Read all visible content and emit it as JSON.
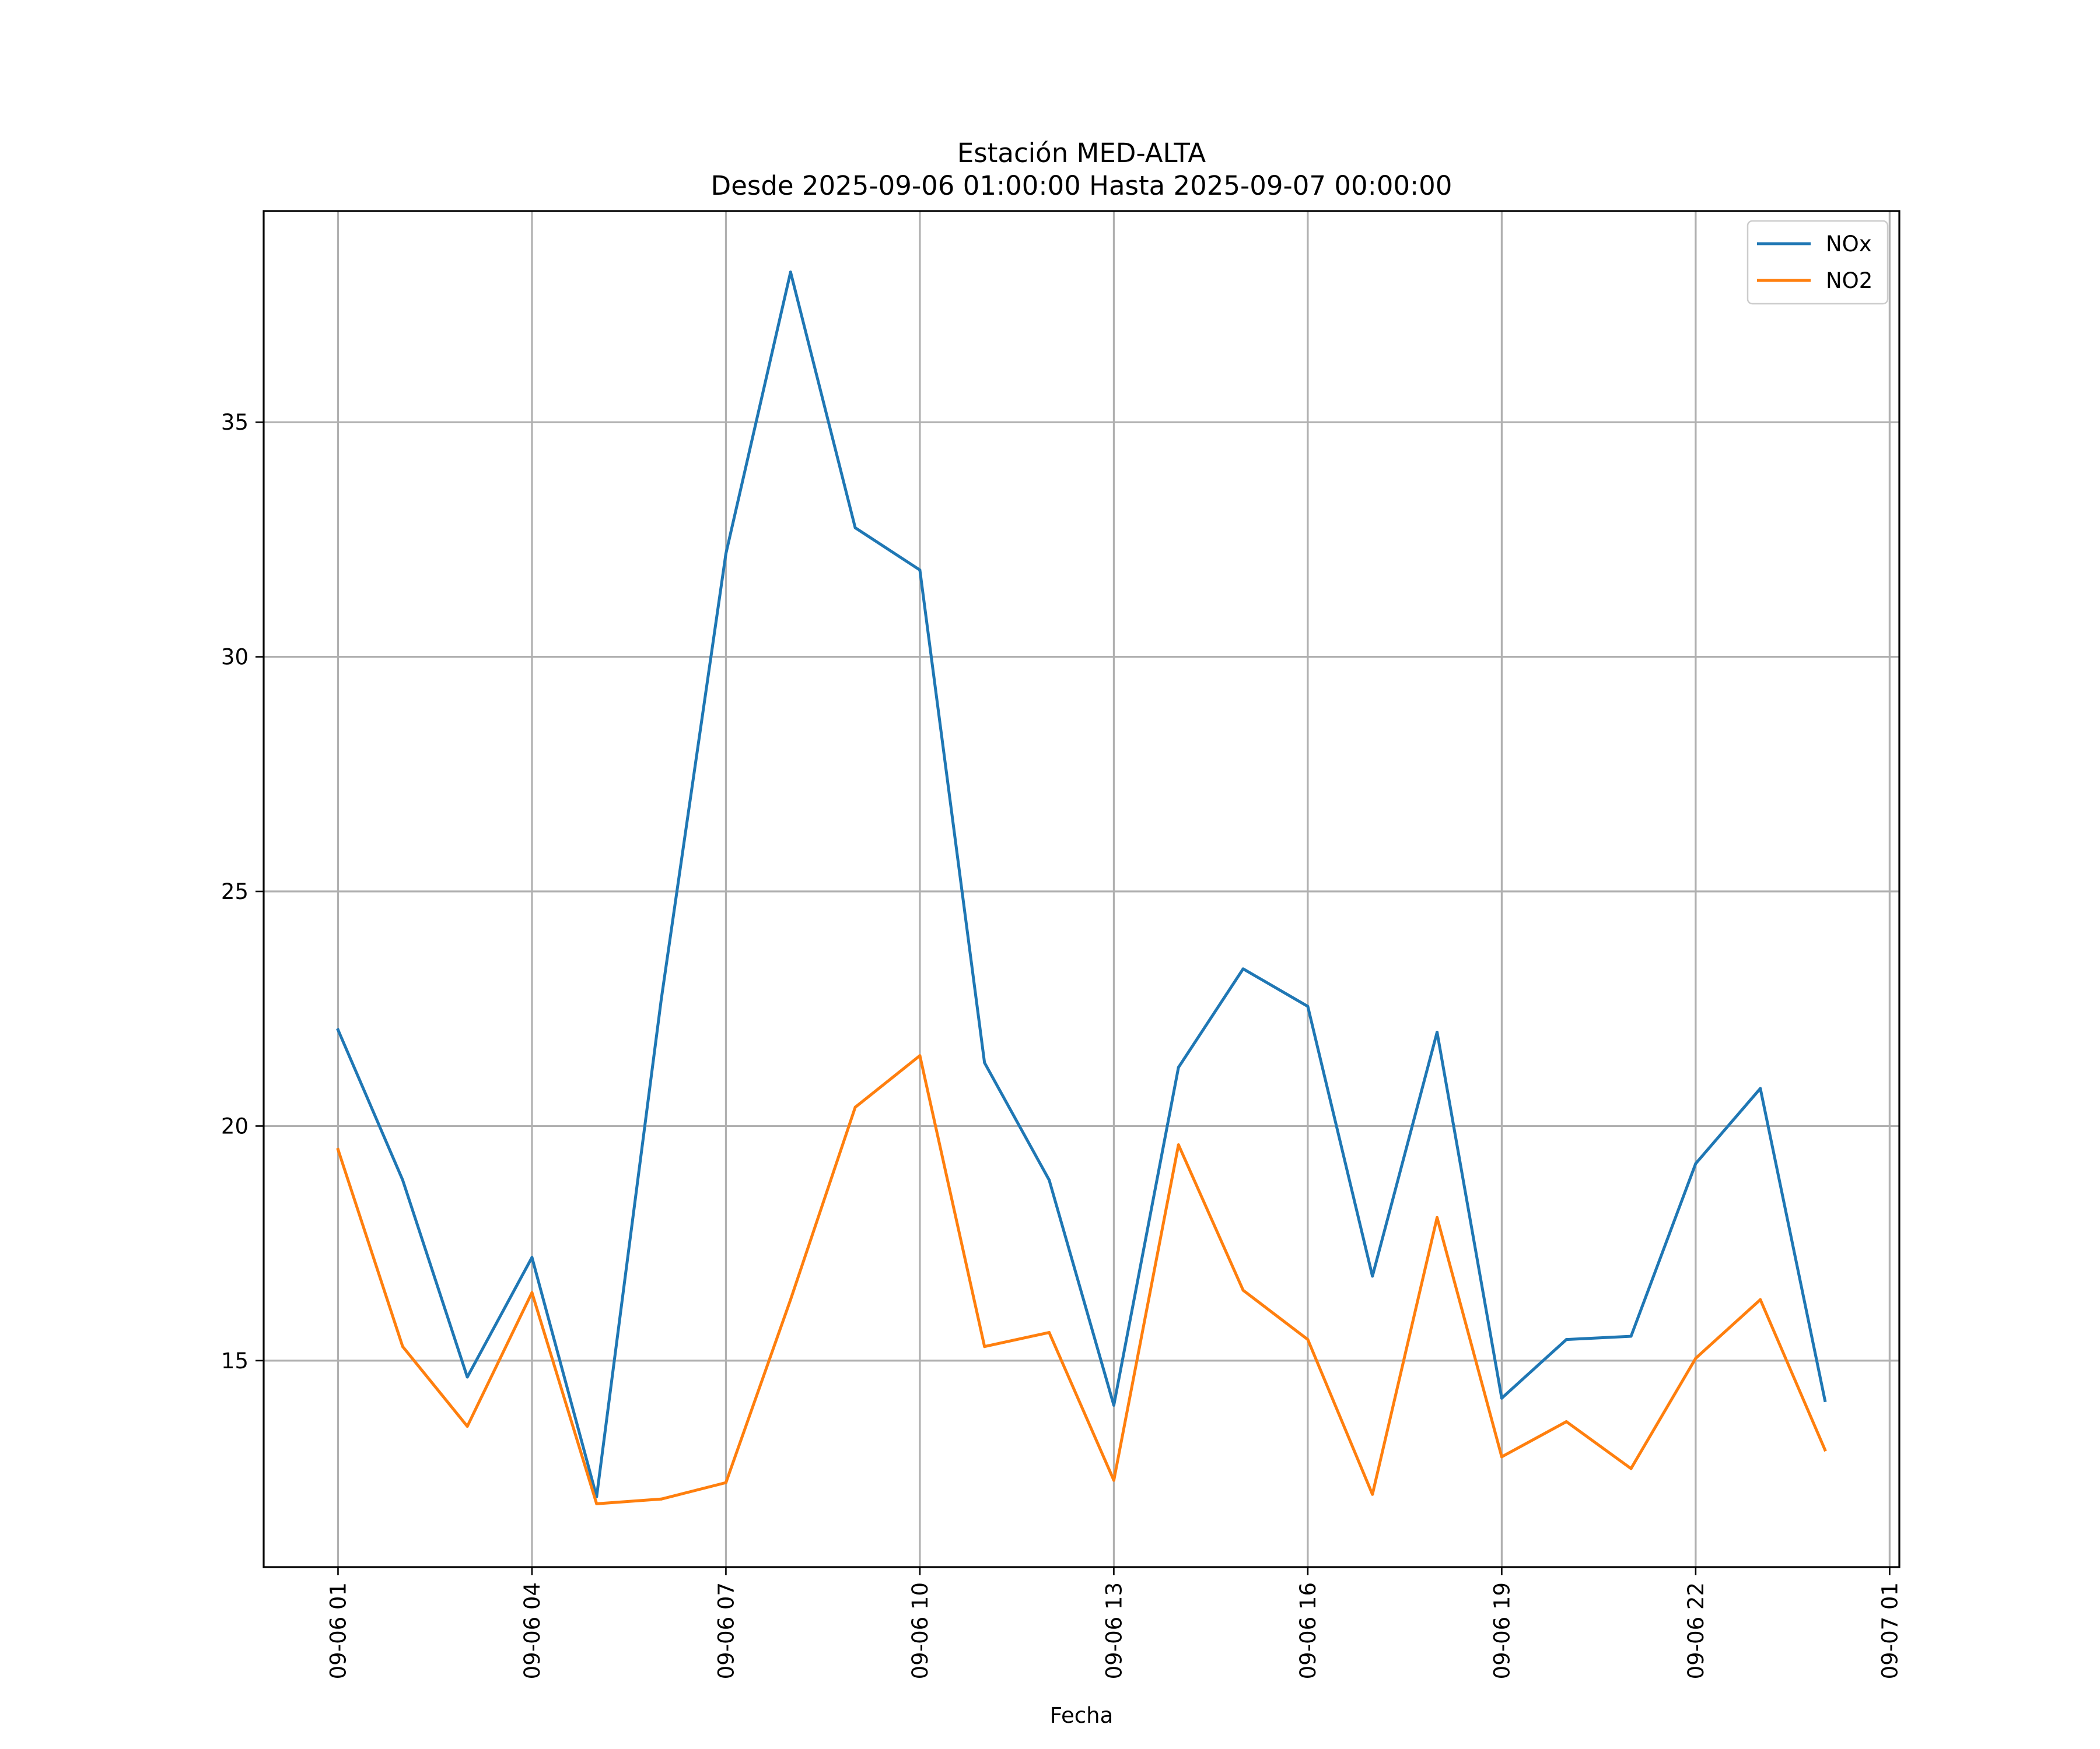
{
  "chart_data": {
    "type": "line",
    "title": "Estación MED-ALTA",
    "subtitle": "Desde 2025-09-06 01:00:00 Hasta 2025-09-07 00:00:00",
    "xlabel": "Fecha",
    "ylabel": "",
    "x": [
      "2025-09-06 01:00",
      "2025-09-06 02:00",
      "2025-09-06 03:00",
      "2025-09-06 04:00",
      "2025-09-06 05:00",
      "2025-09-06 06:00",
      "2025-09-06 07:00",
      "2025-09-06 08:00",
      "2025-09-06 09:00",
      "2025-09-06 10:00",
      "2025-09-06 11:00",
      "2025-09-06 12:00",
      "2025-09-06 13:00",
      "2025-09-06 14:00",
      "2025-09-06 15:00",
      "2025-09-06 16:00",
      "2025-09-06 17:00",
      "2025-09-06 18:00",
      "2025-09-06 19:00",
      "2025-09-06 20:00",
      "2025-09-06 21:00",
      "2025-09-06 22:00",
      "2025-09-06 23:00",
      "2025-09-07 00:00"
    ],
    "x_ticks": [
      "2025-09-06 01:00",
      "2025-09-06 04:00",
      "2025-09-06 07:00",
      "2025-09-06 10:00",
      "2025-09-06 13:00",
      "2025-09-06 16:00",
      "2025-09-06 19:00",
      "2025-09-06 22:00",
      "2025-09-07 01:00"
    ],
    "x_tick_labels": [
      "09-06 01",
      "09-06 04",
      "09-06 07",
      "09-06 10",
      "09-06 13",
      "09-06 16",
      "09-06 19",
      "09-06 22",
      "09-07 01"
    ],
    "xlim": [
      "2025-09-05 23:51",
      "2025-09-07 01:09"
    ],
    "y_ticks": [
      15,
      20,
      25,
      30,
      35
    ],
    "y_tick_labels": [
      "15",
      "20",
      "25",
      "30",
      "35"
    ],
    "ylim": [
      10.6,
      39.5
    ],
    "grid": true,
    "legend_position": "top-right",
    "series": [
      {
        "name": "NOx",
        "color": "#1f77b4",
        "values": [
          22.05,
          18.85,
          14.65,
          17.2,
          12.1,
          22.7,
          32.2,
          38.2,
          32.75,
          31.85,
          21.35,
          18.85,
          14.05,
          21.25,
          23.35,
          22.55,
          16.8,
          22.0,
          14.2,
          15.45,
          15.52,
          19.2,
          20.8,
          14.15
        ]
      },
      {
        "name": "NO2",
        "color": "#ff7f0e",
        "values": [
          19.5,
          15.3,
          13.6,
          16.45,
          11.95,
          12.05,
          12.4,
          16.3,
          20.4,
          21.5,
          15.3,
          15.6,
          12.45,
          19.6,
          16.5,
          15.45,
          12.15,
          18.05,
          12.95,
          13.7,
          12.7,
          15.05,
          16.3,
          13.1
        ]
      }
    ]
  }
}
